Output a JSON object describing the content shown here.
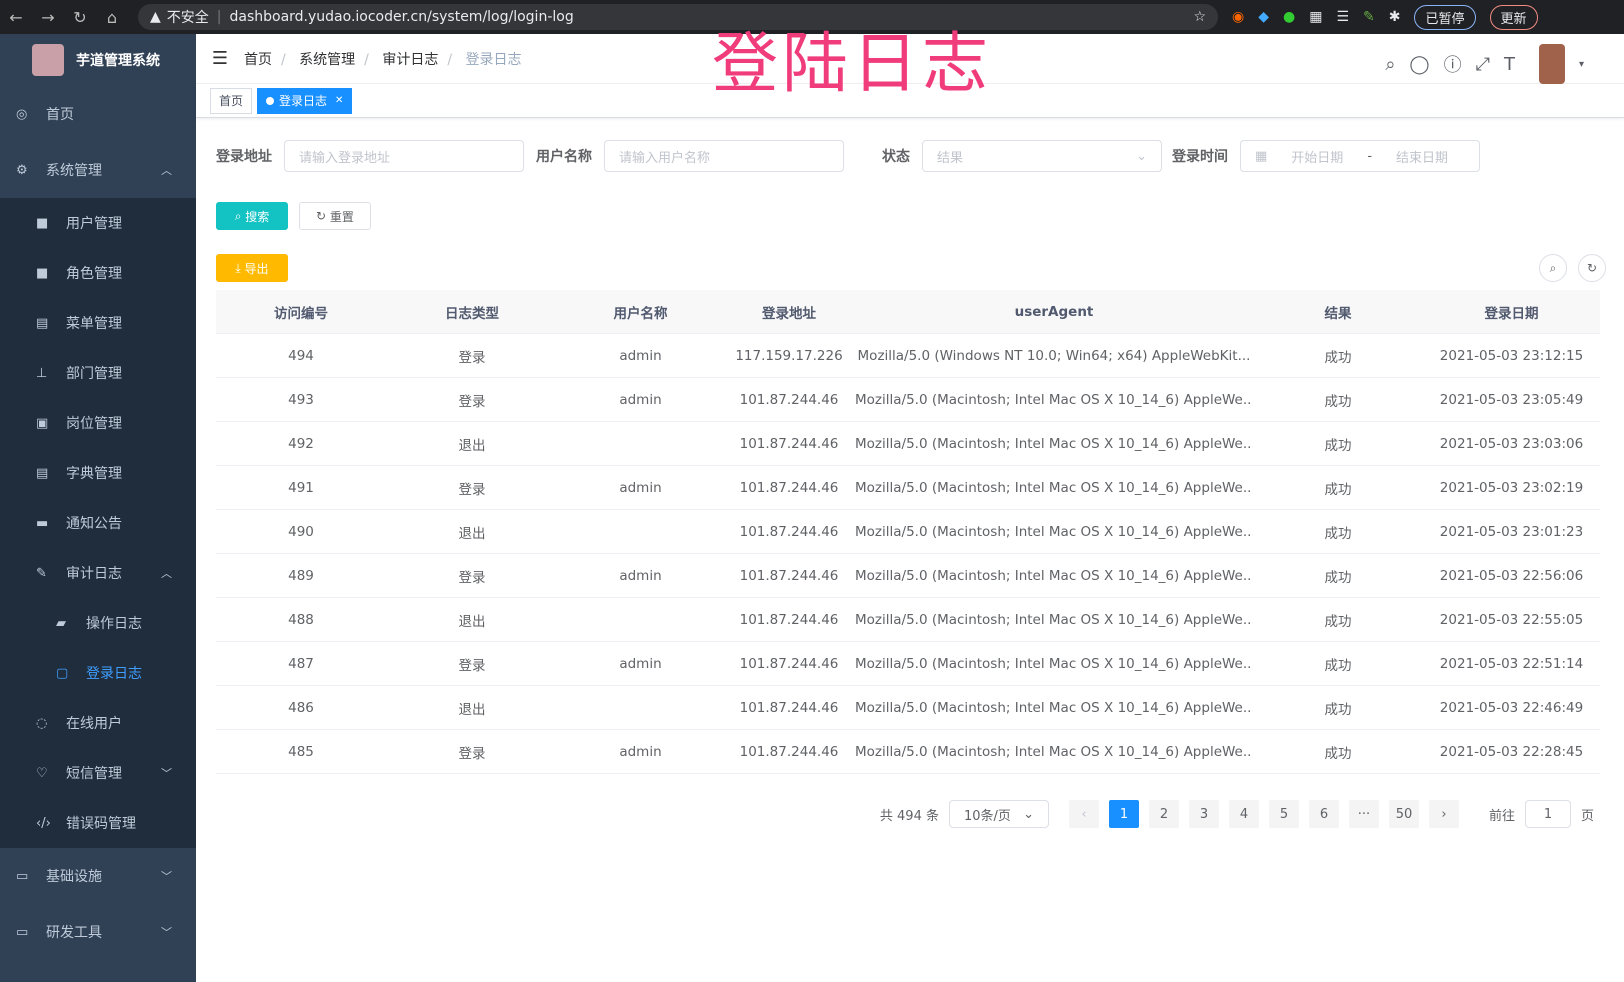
{
  "browser": {
    "not_secure": "不安全",
    "url": "dashboard.yudao.iocoder.cn/system/log/login-log",
    "profile": "已暂停",
    "update": "更新"
  },
  "overlay_title": "登陆日志",
  "sidebar": {
    "title": "芋道管理系统",
    "items": [
      {
        "label": "首页",
        "icon": "dashboard-icon"
      },
      {
        "label": "系统管理",
        "icon": "gear-icon"
      },
      {
        "label": "用户管理",
        "icon": "user-icon"
      },
      {
        "label": "角色管理",
        "icon": "role-icon"
      },
      {
        "label": "菜单管理",
        "icon": "menu-icon"
      },
      {
        "label": "部门管理",
        "icon": "tree-icon"
      },
      {
        "label": "岗位管理",
        "icon": "post-icon"
      },
      {
        "label": "字典管理",
        "icon": "dict-icon"
      },
      {
        "label": "通知公告",
        "icon": "message-icon"
      },
      {
        "label": "审计日志",
        "icon": "log-icon"
      },
      {
        "label": "操作日志",
        "icon": "form-icon"
      },
      {
        "label": "登录日志",
        "icon": "logininfor-icon"
      },
      {
        "label": "在线用户",
        "icon": "online-icon"
      },
      {
        "label": "短信管理",
        "icon": "shield-icon"
      },
      {
        "label": "错误码管理",
        "icon": "code-icon"
      },
      {
        "label": "基础设施",
        "icon": "monitor-icon"
      },
      {
        "label": "研发工具",
        "icon": "tool-icon"
      }
    ]
  },
  "breadcrumb": [
    "首页",
    "系统管理",
    "审计日志",
    "登录日志"
  ],
  "tags": {
    "home": "首页",
    "current": "登录日志"
  },
  "search": {
    "addr_label": "登录地址",
    "addr_ph": "请输入登录地址",
    "user_label": "用户名称",
    "user_ph": "请输入用户名称",
    "status_label": "状态",
    "status_ph": "结果",
    "time_label": "登录时间",
    "start_ph": "开始日期",
    "sep": "-",
    "end_ph": "结束日期",
    "search_btn": "搜索",
    "reset_btn": "重置",
    "export_btn": "导出"
  },
  "colors": {
    "sidebar": "#304156",
    "active": "#409eff",
    "search": "#13c2c2",
    "export": "#ffba00"
  },
  "table": {
    "columns": [
      "访问编号",
      "日志类型",
      "用户名称",
      "登录地址",
      "userAgent",
      "结果",
      "登录日期"
    ],
    "rows": [
      [
        "494",
        "登录",
        "admin",
        "117.159.17.226",
        "Mozilla/5.0 (Windows NT 10.0; Win64; x64) AppleWebKit...",
        "成功",
        "2021-05-03 23:12:15"
      ],
      [
        "493",
        "登录",
        "admin",
        "101.87.244.46",
        "Mozilla/5.0 (Macintosh; Intel Mac OS X 10_14_6) AppleWe...",
        "成功",
        "2021-05-03 23:05:49"
      ],
      [
        "492",
        "退出",
        "",
        "101.87.244.46",
        "Mozilla/5.0 (Macintosh; Intel Mac OS X 10_14_6) AppleWe...",
        "成功",
        "2021-05-03 23:03:06"
      ],
      [
        "491",
        "登录",
        "admin",
        "101.87.244.46",
        "Mozilla/5.0 (Macintosh; Intel Mac OS X 10_14_6) AppleWe...",
        "成功",
        "2021-05-03 23:02:19"
      ],
      [
        "490",
        "退出",
        "",
        "101.87.244.46",
        "Mozilla/5.0 (Macintosh; Intel Mac OS X 10_14_6) AppleWe...",
        "成功",
        "2021-05-03 23:01:23"
      ],
      [
        "489",
        "登录",
        "admin",
        "101.87.244.46",
        "Mozilla/5.0 (Macintosh; Intel Mac OS X 10_14_6) AppleWe...",
        "成功",
        "2021-05-03 22:56:06"
      ],
      [
        "488",
        "退出",
        "",
        "101.87.244.46",
        "Mozilla/5.0 (Macintosh; Intel Mac OS X 10_14_6) AppleWe...",
        "成功",
        "2021-05-03 22:55:05"
      ],
      [
        "487",
        "登录",
        "admin",
        "101.87.244.46",
        "Mozilla/5.0 (Macintosh; Intel Mac OS X 10_14_6) AppleWe...",
        "成功",
        "2021-05-03 22:51:14"
      ],
      [
        "486",
        "退出",
        "",
        "101.87.244.46",
        "Mozilla/5.0 (Macintosh; Intel Mac OS X 10_14_6) AppleWe...",
        "成功",
        "2021-05-03 22:46:49"
      ],
      [
        "485",
        "登录",
        "admin",
        "101.87.244.46",
        "Mozilla/5.0 (Macintosh; Intel Mac OS X 10_14_6) AppleWe...",
        "成功",
        "2021-05-03 22:28:45"
      ]
    ]
  },
  "pagination": {
    "total": "共 494 条",
    "size": "10条/页",
    "pages": [
      "1",
      "2",
      "3",
      "4",
      "5",
      "6",
      "···",
      "50"
    ],
    "current": 1,
    "goto": "前往",
    "goto_value": "1",
    "page_unit": "页"
  }
}
